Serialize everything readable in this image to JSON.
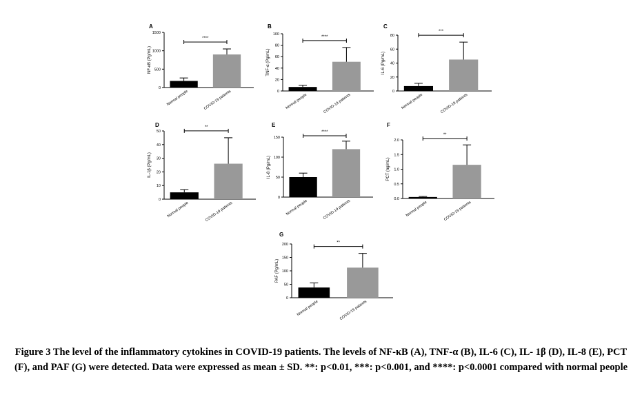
{
  "colors": {
    "normal": "#000000",
    "covid": "#999999",
    "axis": "#000000"
  },
  "caption": {
    "line1": "Figure 3 The level of the inflammatory cytokines in COVID-19 patients. The levels of NF-κB (A), TNF-α (B), IL-6 (C), IL-",
    "line2": "1β (D), IL-8 (E), PCT (F), and PAF (G) were detected. Data were expressed as mean ± SD. **: p<0.01, ***: p<0.001, and",
    "line3": "****: p<0.0001 compared with normal people"
  },
  "chart_data": [
    {
      "panel": "A",
      "type": "bar",
      "categories": [
        "Normal people",
        "COVID-19 patients"
      ],
      "values": [
        180,
        900
      ],
      "errors": [
        80,
        150
      ],
      "ylabel": "NF-κB (Pg/mL)",
      "ylim": [
        0,
        1500
      ],
      "yticks": [
        "0",
        "500",
        "1000",
        "1500"
      ],
      "significance": "****"
    },
    {
      "panel": "B",
      "type": "bar",
      "categories": [
        "Normal people",
        "COVID-19 patients"
      ],
      "values": [
        7,
        51
      ],
      "errors": [
        3,
        25
      ],
      "ylabel": "TNF-α (Pg/mL)",
      "ylim": [
        0,
        100
      ],
      "yticks": [
        "0",
        "20",
        "40",
        "60",
        "80",
        "100"
      ],
      "significance": "****"
    },
    {
      "panel": "C",
      "type": "bar",
      "categories": [
        "Normal people",
        "COVID-19 patients"
      ],
      "values": [
        7,
        45
      ],
      "errors": [
        4,
        25
      ],
      "ylabel": "IL-6 (Pg/mL)",
      "ylim": [
        0,
        80
      ],
      "yticks": [
        "0",
        "20",
        "40",
        "60",
        "80"
      ],
      "significance": "***"
    },
    {
      "panel": "D",
      "type": "bar",
      "categories": [
        "Normal people",
        "COVID-19 patients"
      ],
      "values": [
        5,
        26
      ],
      "errors": [
        2,
        19
      ],
      "ylabel": "IL-1β (Pg/mL)",
      "ylim": [
        0,
        50
      ],
      "yticks": [
        "0",
        "10",
        "20",
        "30",
        "40",
        "50"
      ],
      "significance": "**"
    },
    {
      "panel": "E",
      "type": "bar",
      "categories": [
        "Normal people",
        "COVID-19 patients"
      ],
      "values": [
        50,
        120
      ],
      "errors": [
        10,
        20
      ],
      "ylabel": "IL-8 (Pg/mL)",
      "ylim": [
        0,
        150
      ],
      "yticks": [
        "0",
        "50",
        "100",
        "150"
      ],
      "significance": "****"
    },
    {
      "panel": "F",
      "type": "bar",
      "categories": [
        "Normal people",
        "COVID-19 patients"
      ],
      "values": [
        0.05,
        1.15
      ],
      "errors": [
        0.02,
        0.68
      ],
      "ylabel": "PCT (ng/mL)",
      "ylim": [
        0,
        2.0
      ],
      "yticks": [
        "0.0",
        "0.5",
        "1.0",
        "1.5",
        "2.0"
      ],
      "significance": "**"
    },
    {
      "panel": "G",
      "type": "bar",
      "categories": [
        "Normal people",
        "COVID-19 patients"
      ],
      "values": [
        38,
        112
      ],
      "errors": [
        17,
        53
      ],
      "ylabel": "PAF (Pg/mL)",
      "ylim": [
        0,
        200
      ],
      "yticks": [
        "0",
        "50",
        "100",
        "150",
        "200"
      ],
      "significance": "**"
    }
  ]
}
